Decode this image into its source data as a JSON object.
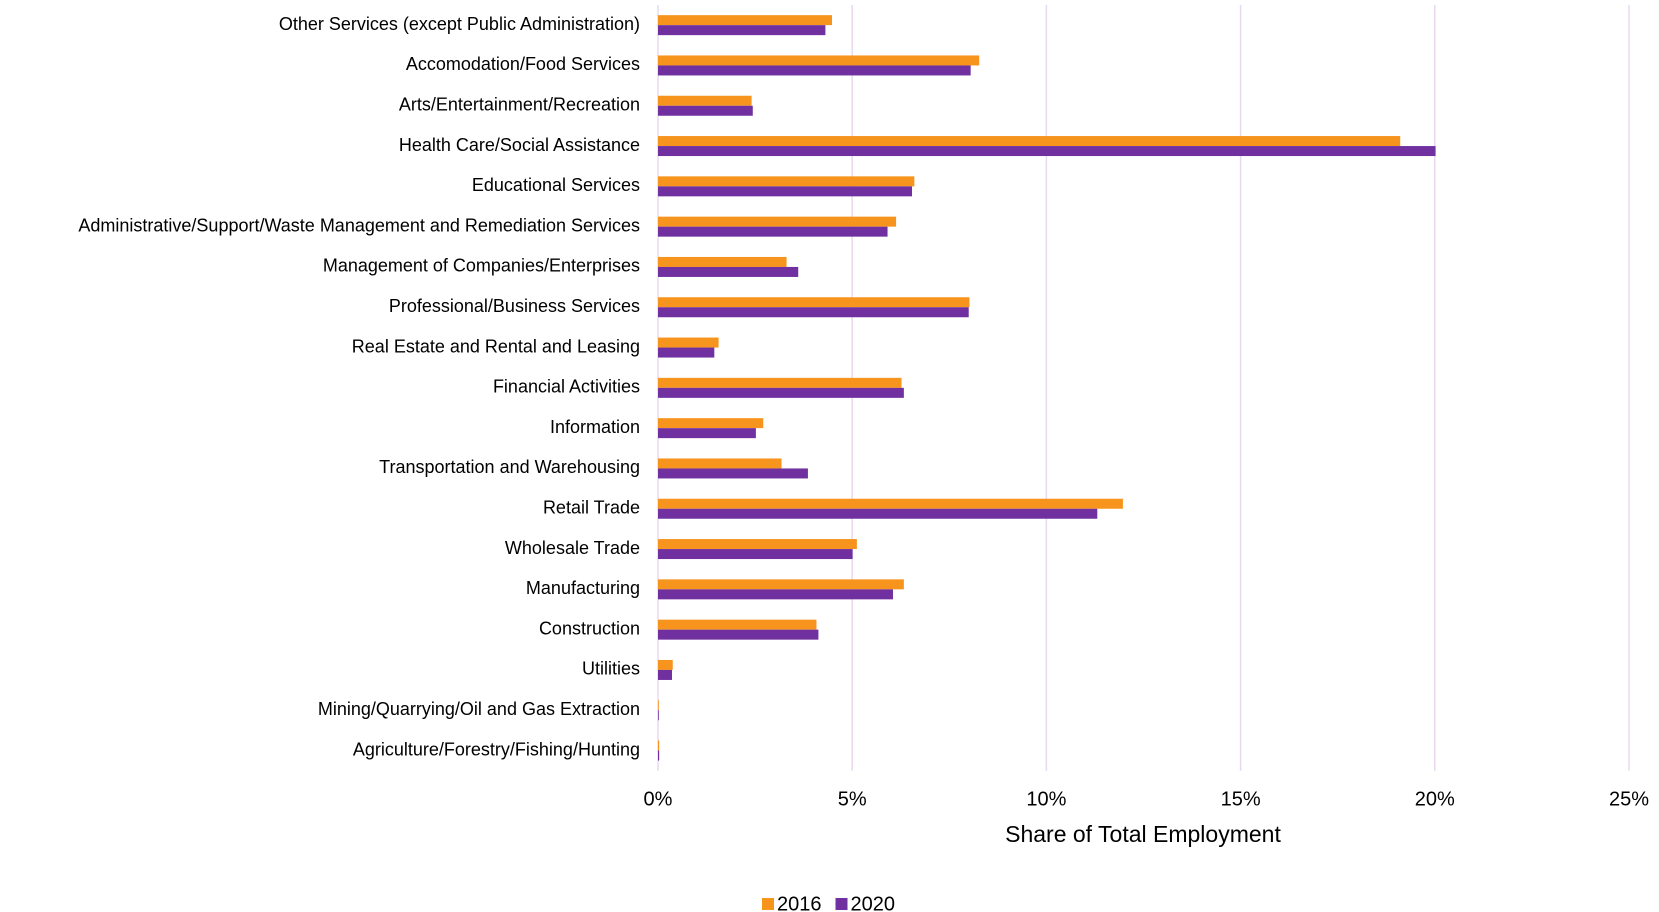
{
  "chart_data": {
    "type": "hbar",
    "x_label": "Share of Total Employment",
    "categories": [
      "Other Services (except Public Administration)",
      "Accomodation/Food Services",
      "Arts/Entertainment/Recreation",
      "Health Care/Social Assistance",
      "Educational Services",
      "Administrative/Support/Waste Management and Remediation Services",
      "Management of Companies/Enterprises",
      "Professional/Business Services",
      "Real Estate and Rental and Leasing",
      "Financial Activities",
      "Information",
      "Transportation and Warehousing",
      "Retail Trade",
      "Wholesale Trade",
      "Manufacturing",
      "Construction",
      "Utilities",
      "Mining/Quarrying/Oil and Gas Extraction",
      "Agriculture/Forestry/Fishing/Hunting"
    ],
    "series": [
      {
        "name": "2016",
        "color": "#f7941d",
        "values": [
          4.48,
          8.27,
          2.41,
          19.11,
          6.6,
          6.13,
          3.31,
          8.02,
          1.56,
          6.27,
          2.71,
          3.18,
          11.97,
          5.12,
          6.33,
          4.08,
          0.38,
          0.02,
          0.03
        ]
      },
      {
        "name": "2020",
        "color": "#7030a0",
        "values": [
          4.31,
          8.05,
          2.44,
          20.02,
          6.54,
          5.91,
          3.61,
          8.0,
          1.45,
          6.33,
          2.52,
          3.86,
          11.31,
          5.01,
          6.05,
          4.13,
          0.36,
          0.02,
          0.03
        ]
      }
    ],
    "xlim": [
      0,
      25
    ],
    "xticks": [
      {
        "value": 0,
        "label": "0%"
      },
      {
        "value": 5,
        "label": "5%"
      },
      {
        "value": 10,
        "label": "10%"
      },
      {
        "value": 15,
        "label": "15%"
      },
      {
        "value": 20,
        "label": "20%"
      },
      {
        "value": 25,
        "label": "25%"
      }
    ],
    "grid": true,
    "grid_color": "#e8d8f0",
    "legend": "bottom"
  }
}
